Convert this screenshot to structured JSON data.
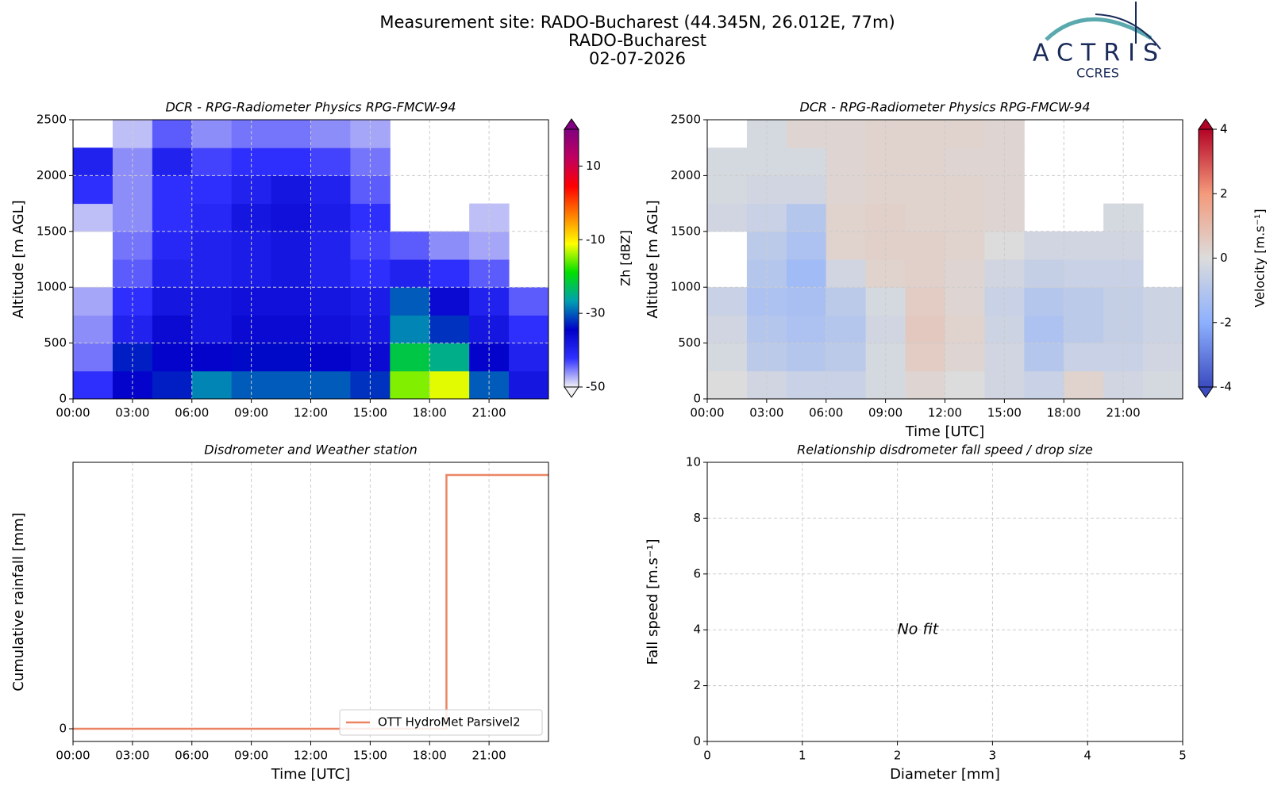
{
  "header": {
    "lines": [
      "Measurement site: RADO-Bucharest (44.345N, 26.012E, 77m)",
      "RADO-Bucharest",
      "02-07-2026"
    ]
  },
  "logo": {
    "text": "ACTRIS",
    "subtext": "CCRES"
  },
  "chart_data": [
    {
      "type": "heatmap",
      "title": "DCR - RPG-Radiometer Physics RPG-FMCW-94",
      "ylabel": "Altitude [m AGL]",
      "xlim": [
        0,
        24
      ],
      "xticks": [
        {
          "value": 0,
          "label": "00:00"
        },
        {
          "value": 3,
          "label": "03:00"
        },
        {
          "value": 6,
          "label": "06:00"
        },
        {
          "value": 9,
          "label": "09:00"
        },
        {
          "value": 12,
          "label": "12:00"
        },
        {
          "value": 15,
          "label": "15:00"
        },
        {
          "value": 18,
          "label": "18:00"
        },
        {
          "value": 21,
          "label": "21:00"
        }
      ],
      "ylim": [
        0,
        2500
      ],
      "yticks": [
        0,
        500,
        1000,
        1500,
        2000,
        2500
      ],
      "grid": "both",
      "x_bins": [
        0,
        2,
        4,
        6,
        8,
        10,
        12,
        14,
        16,
        18,
        20,
        22,
        24
      ],
      "y_bins": [
        0,
        250,
        500,
        750,
        1000,
        1250,
        1500,
        1750,
        2000,
        2250,
        2500
      ],
      "values": [
        [
          -42,
          -35,
          -33,
          -28,
          -30,
          -30,
          -30,
          -32,
          -15,
          -12,
          -30,
          -38
        ],
        [
          -45,
          -33,
          -35,
          -35,
          -34,
          -34,
          -35,
          -36,
          -22,
          -25,
          -35,
          -40
        ],
        [
          -46,
          -40,
          -36,
          -38,
          -36,
          -36,
          -37,
          -38,
          -28,
          -32,
          -38,
          -42
        ],
        [
          -47,
          -42,
          -38,
          -38,
          -37,
          -37,
          -38,
          -39,
          -30,
          -36,
          -40,
          -44
        ],
        [
          null,
          -44,
          -40,
          -40,
          -39,
          -38,
          -40,
          -42,
          -40,
          -42,
          -44,
          null
        ],
        [
          null,
          -45,
          -41,
          -40,
          -39,
          -38,
          -40,
          -43,
          -44,
          -46,
          -47,
          null
        ],
        [
          -48,
          -46,
          -42,
          -41,
          -38,
          -37,
          -39,
          -42,
          null,
          null,
          -48,
          null
        ],
        [
          -42,
          -46,
          -42,
          -42,
          -40,
          -38,
          -40,
          -44,
          null,
          null,
          null,
          null
        ],
        [
          -40,
          -46,
          -40,
          -43,
          -42,
          -42,
          -43,
          -45,
          null,
          null,
          null,
          null
        ],
        [
          null,
          -48,
          -44,
          -46,
          -45,
          -45,
          -46,
          -47,
          null,
          null,
          null,
          null
        ]
      ],
      "colorbar": {
        "label": "Zh [dBZ]",
        "lim": [
          -50,
          20
        ],
        "ticks": [
          -50,
          -30,
          -10,
          10
        ],
        "colormap": [
          "#f0f0f5",
          "#3030ff",
          "#0000c8",
          "#00a0b0",
          "#00e000",
          "#ffff00",
          "#ff8000",
          "#ff0000",
          "#c00060",
          "#800080"
        ]
      }
    },
    {
      "type": "heatmap",
      "title": "DCR - RPG-Radiometer Physics RPG-FMCW-94",
      "xlabel": "Time [UTC]",
      "ylabel": "Altitude [m AGL]",
      "xlim": [
        0,
        24
      ],
      "xticks": [
        {
          "value": 0,
          "label": "00:00"
        },
        {
          "value": 3,
          "label": "03:00"
        },
        {
          "value": 6,
          "label": "06:00"
        },
        {
          "value": 9,
          "label": "09:00"
        },
        {
          "value": 12,
          "label": "12:00"
        },
        {
          "value": 15,
          "label": "15:00"
        },
        {
          "value": 18,
          "label": "18:00"
        },
        {
          "value": 21,
          "label": "21:00"
        }
      ],
      "ylim": [
        0,
        2500
      ],
      "yticks": [
        0,
        500,
        1000,
        1500,
        2000,
        2500
      ],
      "grid": "both",
      "x_bins": [
        0,
        2,
        4,
        6,
        8,
        10,
        12,
        14,
        16,
        18,
        20,
        22,
        24
      ],
      "y_bins": [
        0,
        250,
        500,
        750,
        1000,
        1250,
        1500,
        1750,
        2000,
        2250,
        2500
      ],
      "values": [
        [
          0,
          -0.3,
          -0.5,
          -0.5,
          -0.2,
          0.2,
          0,
          -0.3,
          -0.5,
          0.3,
          -0.3,
          -0.2
        ],
        [
          -0.2,
          -0.8,
          -1,
          -0.8,
          -0.2,
          0.5,
          0.2,
          -0.3,
          -1,
          -0.5,
          -0.5,
          -0.3
        ],
        [
          -0.3,
          -1,
          -1.2,
          -1,
          -0.3,
          0.6,
          0.3,
          -0.4,
          -1.2,
          -0.8,
          -0.6,
          -0.4
        ],
        [
          -0.5,
          -1.2,
          -1.3,
          -0.8,
          -0.2,
          0.5,
          0.2,
          -0.5,
          -1,
          -0.8,
          -0.6,
          -0.4
        ],
        [
          null,
          -1,
          -1.5,
          -0.3,
          0.3,
          0.4,
          0.2,
          -0.3,
          -0.6,
          -0.5,
          -0.5,
          null
        ],
        [
          null,
          -0.8,
          -1.2,
          0.3,
          0.4,
          0.4,
          0.3,
          0,
          -0.3,
          -0.3,
          -0.3,
          null
        ],
        [
          -0.3,
          -0.5,
          -1,
          0.3,
          0.4,
          0.3,
          0.3,
          0.2,
          null,
          null,
          -0.2,
          null
        ],
        [
          -0.2,
          -0.3,
          -0.3,
          0.2,
          0.3,
          0.3,
          0.3,
          0.2,
          null,
          null,
          null,
          null
        ],
        [
          -0.2,
          -0.2,
          -0.2,
          0.2,
          0.3,
          0.3,
          0.2,
          0.2,
          null,
          null,
          null,
          null
        ],
        [
          null,
          -0.2,
          0.2,
          0.2,
          0.3,
          0.3,
          0.3,
          0.2,
          null,
          null,
          null,
          null
        ]
      ],
      "colorbar": {
        "label": "Velocity [m.s⁻¹]",
        "lim": [
          -4,
          4
        ],
        "ticks": [
          -4,
          -2,
          0,
          2,
          4
        ],
        "colormap": [
          "#3b4cc0",
          "#8db0fe",
          "#dcdcdc",
          "#f49a7b",
          "#b40426"
        ]
      }
    },
    {
      "type": "line",
      "title": "Disdrometer and Weather station",
      "xlabel": "Time [UTC]",
      "ylabel": "Cumulative rainfall [mm]",
      "xlim": [
        0,
        24
      ],
      "xticks": [
        {
          "value": 0,
          "label": "00:00"
        },
        {
          "value": 3,
          "label": "03:00"
        },
        {
          "value": 6,
          "label": "06:00"
        },
        {
          "value": 9,
          "label": "09:00"
        },
        {
          "value": 12,
          "label": "12:00"
        },
        {
          "value": 15,
          "label": "15:00"
        },
        {
          "value": 18,
          "label": "18:00"
        },
        {
          "value": 21,
          "label": "21:00"
        }
      ],
      "ylim": [
        -0.01,
        0.21
      ],
      "yticks": [
        0
      ],
      "grid": "x",
      "legend": "lower right",
      "x": [
        0,
        18.85,
        18.85,
        24
      ],
      "series": [
        {
          "name": "OTT HydroMet Parsivel2",
          "color": "#ec8564",
          "values": [
            0,
            0,
            0.2,
            0.2
          ]
        }
      ]
    },
    {
      "type": "scatter",
      "title": "Relationship disdrometer fall speed / drop size",
      "xlabel": "Diameter [mm]",
      "ylabel": "Fall speed [m.s⁻¹]",
      "xlim": [
        0,
        5
      ],
      "xticks": [
        0,
        1,
        2,
        3,
        4,
        5
      ],
      "ylim": [
        0,
        10
      ],
      "yticks": [
        0,
        2,
        4,
        6,
        8,
        10
      ],
      "grid": "both",
      "annotation": "No fit"
    }
  ]
}
